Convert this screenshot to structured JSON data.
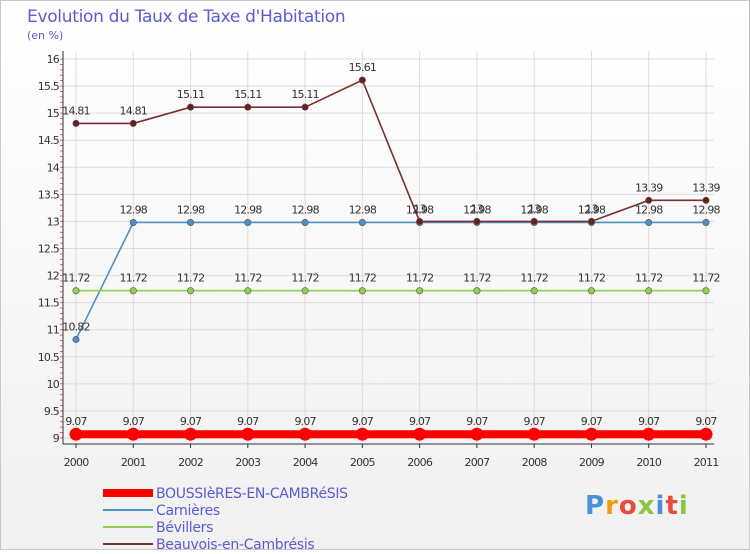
{
  "title": "Evolution du Taux de Taxe d'Habitation",
  "subtitle": "(en %)",
  "logo": "Proxiti",
  "chart_data": {
    "type": "line",
    "title": "Evolution du Taux de Taxe d'Habitation",
    "ylabel": "(en %)",
    "xlabel": "",
    "x": [
      "2000",
      "2001",
      "2002",
      "2003",
      "2004",
      "2005",
      "2006",
      "2007",
      "2008",
      "2009",
      "2010",
      "2011"
    ],
    "ylim": [
      9,
      16
    ],
    "yticks": [
      "9",
      "9.5",
      "10",
      "10.5",
      "11",
      "11.5",
      "12",
      "12.5",
      "13",
      "13.5",
      "14",
      "14.5",
      "15",
      "15.5",
      "16"
    ],
    "grid": true,
    "series": [
      {
        "name": "BOUSSIèRES-EN-CAMBRéSIS",
        "color": "#ff0000",
        "values": [
          9.07,
          9.07,
          9.07,
          9.07,
          9.07,
          9.07,
          9.07,
          9.07,
          9.07,
          9.07,
          9.07,
          9.07
        ],
        "labels": [
          "9.07",
          "9.07",
          "9.07",
          "9.07",
          "9.07",
          "9.07",
          "9.07",
          "9.07",
          "9.07",
          "9.07",
          "9.07",
          "9.07"
        ]
      },
      {
        "name": "Carnières",
        "color": "#4f8fc8",
        "values": [
          10.82,
          12.98,
          12.98,
          12.98,
          12.98,
          12.98,
          12.98,
          12.98,
          12.98,
          12.98,
          12.98,
          12.98
        ],
        "labels": [
          "10.82",
          "12.98",
          "12.98",
          "12.98",
          "12.98",
          "12.98",
          "12.98",
          "12.98",
          "12.98",
          "12.98",
          "12.98",
          "12.98"
        ]
      },
      {
        "name": "Bévillers",
        "color": "#8fd14f",
        "values": [
          11.72,
          11.72,
          11.72,
          11.72,
          11.72,
          11.72,
          11.72,
          11.72,
          11.72,
          11.72,
          11.72,
          11.72
        ],
        "labels": [
          "11.72",
          "11.72",
          "11.72",
          "11.72",
          "11.72",
          "11.72",
          "11.72",
          "11.72",
          "11.72",
          "11.72",
          "11.72",
          "11.72"
        ]
      },
      {
        "name": "Beauvois-en-Cambrésis",
        "color": "#7a3030",
        "values": [
          14.81,
          14.81,
          15.11,
          15.11,
          15.11,
          15.61,
          13,
          13,
          13,
          13,
          13.39,
          13.39
        ],
        "labels": [
          "14.81",
          "14.81",
          "15.11",
          "15.11",
          "15.11",
          "15.61",
          "13",
          "13",
          "13",
          "13",
          "13.39",
          "13.39"
        ]
      }
    ]
  }
}
